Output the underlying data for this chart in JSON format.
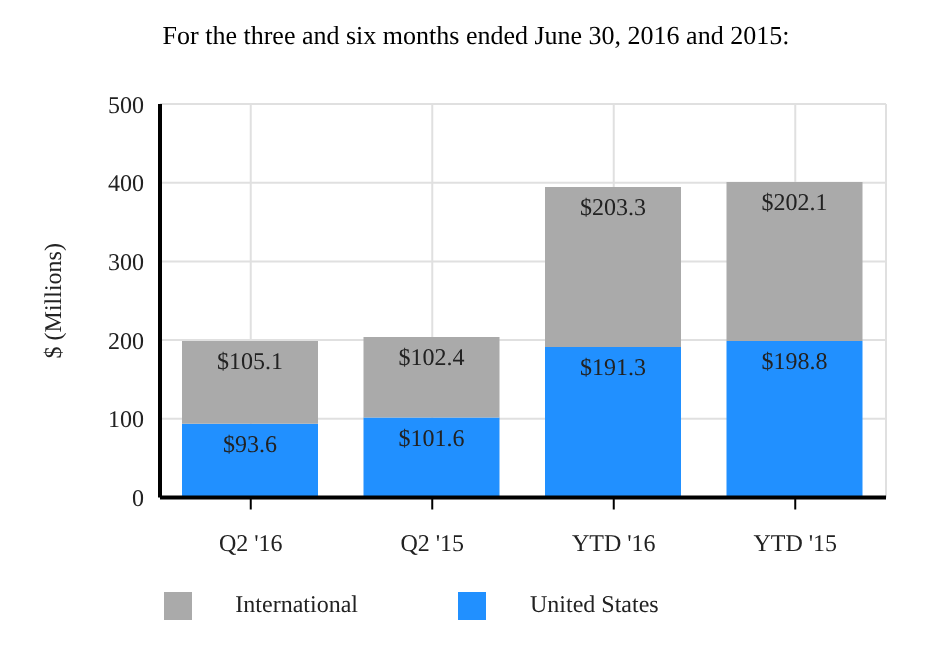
{
  "chart_data": {
    "type": "bar",
    "stacked": true,
    "title": "For the three and six months ended June 30, 2016 and 2015:",
    "ylabel": "$ (Millions)",
    "categories": [
      "Q2 '16",
      "Q2 '15",
      "YTD '16",
      "YTD '15"
    ],
    "series": [
      {
        "name": "United States",
        "color": "#2190ff",
        "values": [
          93.6,
          101.6,
          191.3,
          198.8
        ],
        "value_labels": [
          "$93.6",
          "$101.6",
          "$191.3",
          "$198.8"
        ]
      },
      {
        "name": "International",
        "color": "#aaaaaa",
        "values": [
          105.1,
          102.4,
          203.3,
          202.1
        ],
        "value_labels": [
          "$105.1",
          "$102.4",
          "$203.3",
          "$202.1"
        ]
      }
    ],
    "ylim": [
      0,
      500
    ],
    "yticks": [
      0,
      100,
      200,
      300,
      400,
      500
    ],
    "grid": true,
    "legend": "bottom"
  }
}
